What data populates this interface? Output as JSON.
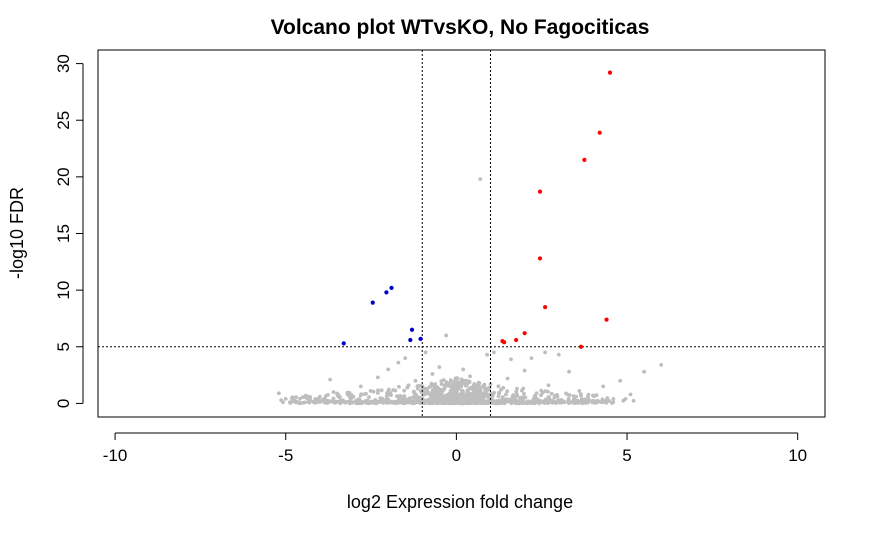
{
  "chart_data": {
    "type": "scatter",
    "title": "Volcano plot WTvsKO, No Fagociticas",
    "xlabel": "log2 Expression fold change",
    "ylabel": "-log10 FDR",
    "xlim": [
      -10.5,
      10.8
    ],
    "ylim": [
      -1.2,
      31.2
    ],
    "x_ticks": [
      -10,
      -5,
      0,
      5,
      10
    ],
    "y_ticks": [
      0,
      5,
      10,
      15,
      20,
      25,
      30
    ],
    "thresholds": {
      "fdr_line": 5,
      "fold_change_lines": [
        -1,
        1
      ]
    },
    "grid": false,
    "legend": "none",
    "colors": {
      "not_significant": "#bebebe",
      "up": "#ff0000",
      "down": "#0000cd",
      "threshold_line": "#000000"
    },
    "series": [
      {
        "color_key": "up",
        "points": [
          [
            4.5,
            29.2
          ],
          [
            4.2,
            23.9
          ],
          [
            3.75,
            21.5
          ],
          [
            2.45,
            18.7
          ],
          [
            2.45,
            12.8
          ],
          [
            2.6,
            8.5
          ],
          [
            4.4,
            7.4
          ],
          [
            2.0,
            6.2
          ],
          [
            1.75,
            5.6
          ],
          [
            1.4,
            5.4
          ],
          [
            1.35,
            5.5
          ],
          [
            3.65,
            5.0
          ]
        ]
      },
      {
        "color_key": "down",
        "points": [
          [
            -1.9,
            10.2
          ],
          [
            -2.05,
            9.8
          ],
          [
            -2.45,
            8.9
          ],
          [
            -1.3,
            6.5
          ],
          [
            -1.35,
            5.6
          ],
          [
            -1.05,
            5.7
          ],
          [
            -3.3,
            5.3
          ]
        ]
      },
      {
        "color_key": "not_significant",
        "points": [
          [
            0.7,
            19.8
          ],
          [
            -0.3,
            6.0
          ],
          [
            6.0,
            3.4
          ],
          [
            5.5,
            2.8
          ],
          [
            4.8,
            2.0
          ],
          [
            4.3,
            1.5
          ],
          [
            -5.2,
            0.9
          ],
          [
            -5.0,
            0.4
          ],
          [
            -4.4,
            0.5
          ],
          [
            -4.0,
            0.6
          ],
          [
            -3.6,
            1.0
          ],
          [
            -3.7,
            2.1
          ],
          [
            -2.8,
            1.5
          ],
          [
            -2.3,
            2.3
          ],
          [
            -2.0,
            3.0
          ],
          [
            -1.7,
            3.6
          ],
          [
            -1.5,
            4.0
          ],
          [
            -0.9,
            4.5
          ],
          [
            -0.5,
            3.2
          ],
          [
            0.2,
            3.0
          ],
          [
            0.9,
            4.3
          ],
          [
            1.1,
            4.5
          ],
          [
            1.6,
            3.9
          ],
          [
            2.2,
            4.0
          ],
          [
            2.6,
            4.5
          ],
          [
            3.0,
            4.3
          ],
          [
            3.3,
            2.8
          ],
          [
            2.7,
            1.6
          ],
          [
            1.5,
            2.2
          ],
          [
            2.0,
            2.9
          ],
          [
            -0.7,
            2.6
          ],
          [
            -1.2,
            2.0
          ],
          [
            0.4,
            2.4
          ],
          [
            -1.4,
            1.6
          ],
          [
            1.0,
            1.7
          ],
          [
            3.6,
            1.1
          ],
          [
            -3.1,
            0.3
          ],
          [
            5.1,
            0.8
          ],
          [
            -4.8,
            0.2
          ],
          [
            4.6,
            0.4
          ]
        ]
      }
    ]
  }
}
